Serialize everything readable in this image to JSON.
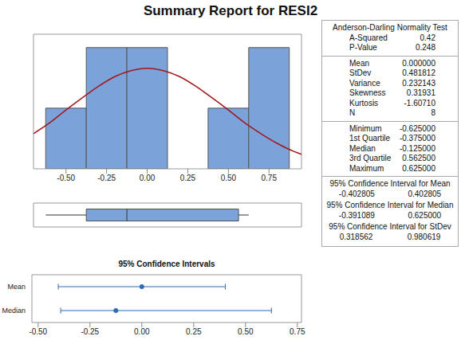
{
  "title": "Summary Report for RESI2",
  "chart_data": [
    {
      "type": "histogram",
      "bins": [
        -0.625,
        -0.375,
        -0.125,
        0.125,
        0.375,
        0.625,
        0.875
      ],
      "counts": [
        1,
        2,
        2,
        0,
        1,
        2
      ],
      "color": "#7ba3d9",
      "xlim": [
        -0.7,
        0.95
      ],
      "xticks": [
        {
          "value": -0.5,
          "label": "-0.50"
        },
        {
          "value": -0.25,
          "label": "-0.25"
        },
        {
          "value": 0,
          "label": "0.00"
        },
        {
          "value": 0.25,
          "label": "0.25"
        },
        {
          "value": 0.5,
          "label": "0.50"
        },
        {
          "value": 0.75,
          "label": "0.75"
        }
      ],
      "ylim": [
        0,
        2.22
      ],
      "tick_labels": "x",
      "fit": {
        "type": "line",
        "color": "#a3161b",
        "x": [
          -0.7,
          -0.6,
          -0.5,
          -0.4,
          -0.3,
          -0.2,
          -0.1,
          0,
          0.1,
          0.2,
          0.3,
          0.4,
          0.5,
          0.6,
          0.7,
          0.8,
          0.9,
          0.95
        ],
        "values": [
          0.58,
          0.76,
          0.97,
          1.17,
          1.36,
          1.52,
          1.62,
          1.66,
          1.62,
          1.52,
          1.36,
          1.17,
          0.97,
          0.76,
          0.58,
          0.42,
          0.29,
          0.24
        ]
      }
    },
    {
      "type": "box",
      "orientation": "horizontal",
      "min": -0.625,
      "q1": -0.375,
      "median": -0.125,
      "q3": 0.5625,
      "max": 0.625,
      "color": "#7ba3d9",
      "xlim": [
        -0.7,
        0.95
      ],
      "tick_labels": false
    },
    {
      "type": "interval",
      "title": "95% Confidence Intervals",
      "orientation": "horizontal",
      "categories": [
        "Mean",
        "Median"
      ],
      "values": [
        0,
        -0.125
      ],
      "lower": [
        -0.402805,
        -0.391089
      ],
      "upper": [
        0.402805,
        0.625
      ],
      "color": "#2f6cb5",
      "xlim": [
        -0.53,
        0.77
      ],
      "xticks": [
        {
          "value": -0.5,
          "label": "-0.50"
        },
        {
          "value": -0.25,
          "label": "-0.25"
        },
        {
          "value": 0,
          "label": "0.00"
        },
        {
          "value": 0.25,
          "label": "0.25"
        },
        {
          "value": 0.5,
          "label": "0.50"
        },
        {
          "value": 0.75,
          "label": "0.75"
        }
      ]
    }
  ],
  "table": {
    "sections": [
      {
        "title": "Anderson-Darling Normality Test",
        "rows": [
          [
            "A-Squared",
            "0.42"
          ],
          [
            "P-Value",
            "0.248"
          ]
        ]
      },
      {
        "rows": [
          [
            "Mean",
            "0.000000"
          ],
          [
            "StDev",
            "0.481812"
          ],
          [
            "Variance",
            "0.232143"
          ],
          [
            "Skewness",
            "0.31931"
          ],
          [
            "Kurtosis",
            "-1.60710"
          ],
          [
            "N",
            "8"
          ]
        ]
      },
      {
        "rows": [
          [
            "Minimum",
            "-0.625000"
          ],
          [
            "1st Quartile",
            "-0.375000"
          ],
          [
            "Median",
            "-0.125000"
          ],
          [
            "3rd Quartile",
            "0.562500"
          ],
          [
            "Maximum",
            "0.625000"
          ]
        ]
      },
      {
        "intervals": [
          {
            "title": "95% Confidence Interval for Mean",
            "values": [
              "-0.402805",
              "0.402805"
            ]
          },
          {
            "title": "95% Confidence Interval for Median",
            "values": [
              "-0.391089",
              "0.625000"
            ]
          },
          {
            "title": "95% Confidence Interval for StDev",
            "values": [
              "0.318562",
              "0.980619"
            ]
          }
        ]
      }
    ]
  }
}
